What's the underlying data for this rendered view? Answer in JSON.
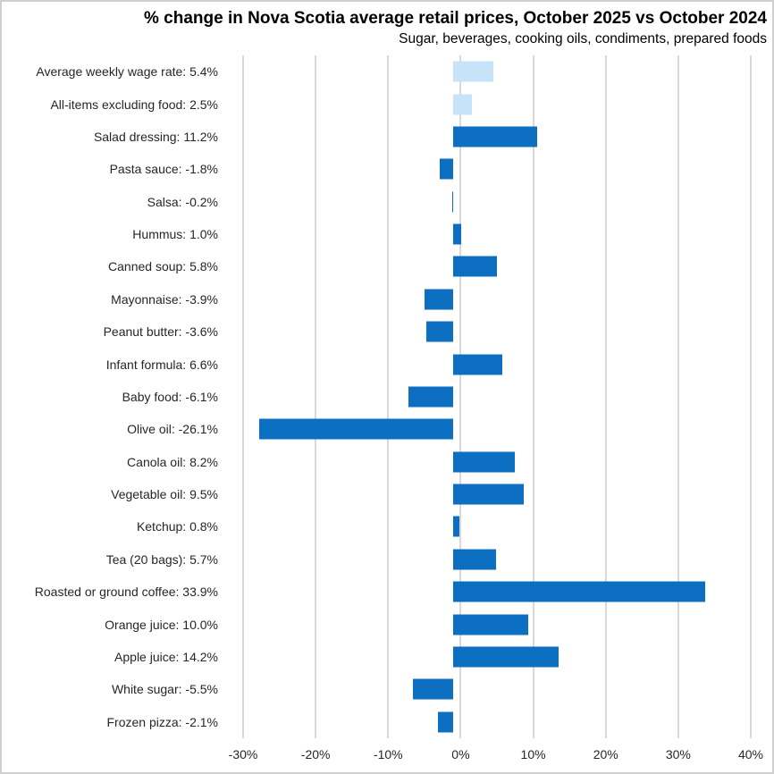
{
  "chart_data": {
    "type": "bar",
    "orientation": "horizontal",
    "title": "% change in Nova Scotia average retail prices, October 2025 vs October 2024",
    "subtitle": "Sugar, beverages, cooking oils, condiments, prepared foods",
    "xlim": [
      -30,
      40
    ],
    "grid": true,
    "legend": "none",
    "colors": {
      "bar": "#0d6fc2",
      "reference_bar": "#c7e3f9",
      "gridline": "#d9d9d9",
      "text": "#262626",
      "background": "#ffffff",
      "border": "#cfcfcf"
    },
    "x_ticks": [
      {
        "value": -30,
        "label": "-30%"
      },
      {
        "value": -20,
        "label": "-20%"
      },
      {
        "value": -10,
        "label": "-10%"
      },
      {
        "value": 0,
        "label": "0%"
      },
      {
        "value": 10,
        "label": "10%"
      },
      {
        "value": 20,
        "label": "20%"
      },
      {
        "value": 30,
        "label": "30%"
      },
      {
        "value": 40,
        "label": "40%"
      }
    ],
    "items": [
      {
        "label": "Average weekly wage rate: 5.4%",
        "value": 5.4,
        "reference": true
      },
      {
        "label": "All-items excluding food: 2.5%",
        "value": 2.5,
        "reference": true
      },
      {
        "label": "Salad dressing: 11.2%",
        "value": 11.2,
        "reference": false
      },
      {
        "label": "Pasta sauce: -1.8%",
        "value": -1.8,
        "reference": false
      },
      {
        "label": "Salsa: -0.2%",
        "value": -0.2,
        "reference": false
      },
      {
        "label": "Hummus: 1.0%",
        "value": 1.0,
        "reference": false
      },
      {
        "label": "Canned soup: 5.8%",
        "value": 5.8,
        "reference": false
      },
      {
        "label": "Mayonnaise: -3.9%",
        "value": -3.9,
        "reference": false
      },
      {
        "label": "Peanut butter: -3.6%",
        "value": -3.6,
        "reference": false
      },
      {
        "label": "Infant formula: 6.6%",
        "value": 6.6,
        "reference": false
      },
      {
        "label": "Baby food: -6.1%",
        "value": -6.1,
        "reference": false
      },
      {
        "label": "Olive oil: -26.1%",
        "value": -26.1,
        "reference": false
      },
      {
        "label": "Canola oil: 8.2%",
        "value": 8.2,
        "reference": false
      },
      {
        "label": "Vegetable oil: 9.5%",
        "value": 9.5,
        "reference": false
      },
      {
        "label": "Ketchup: 0.8%",
        "value": 0.8,
        "reference": false
      },
      {
        "label": "Tea (20 bags): 5.7%",
        "value": 5.7,
        "reference": false
      },
      {
        "label": "Roasted or ground coffee: 33.9%",
        "value": 33.9,
        "reference": false
      },
      {
        "label": "Orange juice: 10.0%",
        "value": 10.0,
        "reference": false
      },
      {
        "label": "Apple juice: 14.2%",
        "value": 14.2,
        "reference": false
      },
      {
        "label": "White sugar: -5.5%",
        "value": -5.5,
        "reference": false
      },
      {
        "label": "Frozen pizza: -2.1%",
        "value": -2.1,
        "reference": false
      }
    ]
  }
}
